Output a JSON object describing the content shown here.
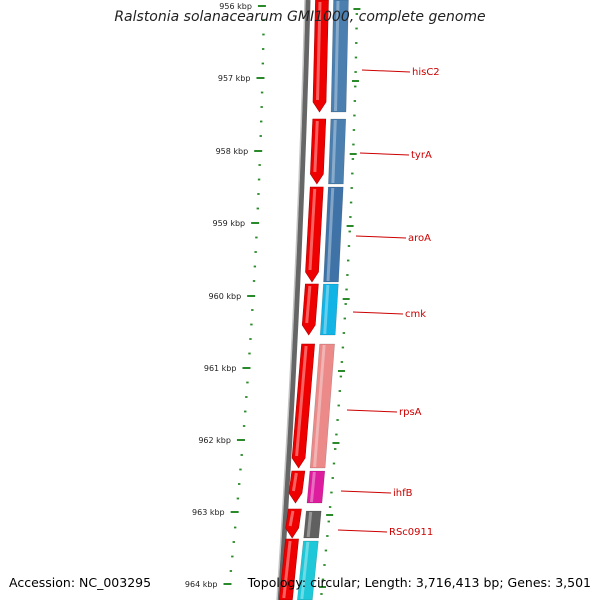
{
  "title": "Ralstonia solanacearum GMI1000, complete genome",
  "accession": "Accession: NC_003295",
  "summary": "Topology: circular; Length: 3,716,413 bp; Genes: 3,501",
  "ticks": [
    "956 kbp",
    "957 kbp",
    "958 kbp",
    "959 kbp",
    "960 kbp",
    "961 kbp",
    "962 kbp",
    "963 kbp",
    "964 kbp"
  ],
  "genes": [
    {
      "name": "hisC2",
      "color": "#4a7fb0"
    },
    {
      "name": "tyrA",
      "color": "#4a7fb0"
    },
    {
      "name": "aroA",
      "color": "#3f73a8"
    },
    {
      "name": "cmk",
      "color": "#12b4e6"
    },
    {
      "name": "rpsA",
      "color": "#ec8a8a"
    },
    {
      "name": "ihfB",
      "color": "#dd1c9e"
    },
    {
      "name": "RSc0911",
      "color": "#606060"
    }
  ],
  "colors": {
    "strand_arrow": "#ee0000",
    "backbone": "#7a7a7a",
    "tick_marks": "#2a8a2a",
    "label_line": "#cc0000",
    "trailing_gene": "#1fc8d8"
  }
}
